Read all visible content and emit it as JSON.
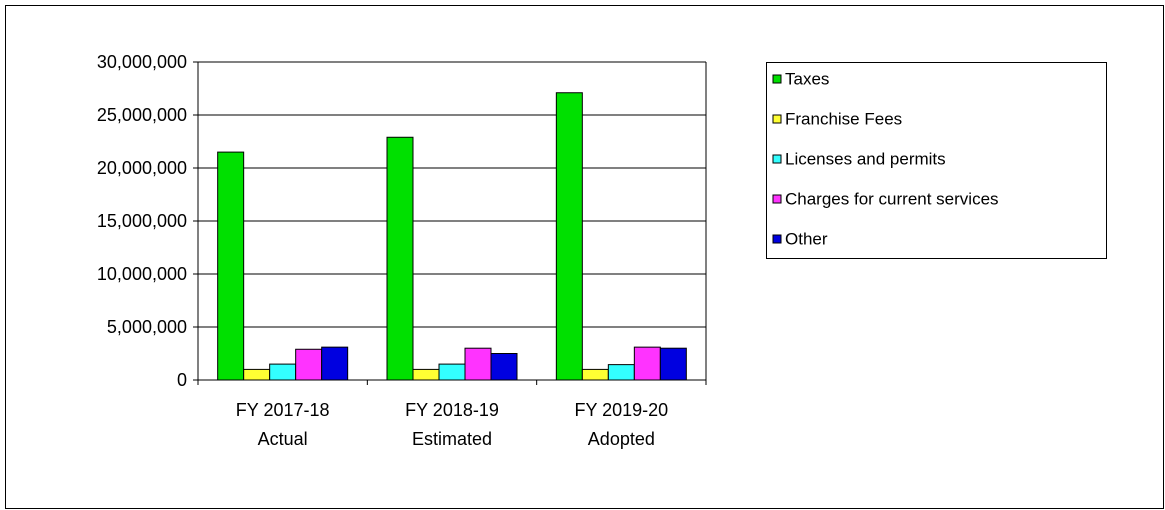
{
  "chart_data": {
    "type": "bar",
    "categories": [
      "FY 2017-18\nActual",
      "FY 2018-19\nEstimated",
      "FY 2019-20\nAdopted"
    ],
    "series": [
      {
        "name": "Taxes",
        "color": "#00e000",
        "values": [
          21500000,
          22900000,
          27100000
        ]
      },
      {
        "name": "Franchise Fees",
        "color": "#ffff33",
        "values": [
          1000000,
          1000000,
          1000000
        ]
      },
      {
        "name": "Licenses and permits",
        "color": "#33ffff",
        "values": [
          1500000,
          1500000,
          1450000
        ]
      },
      {
        "name": "Charges for current services",
        "color": "#ff33ff",
        "values": [
          2900000,
          3000000,
          3100000
        ]
      },
      {
        "name": "Other",
        "color": "#0000e0",
        "values": [
          3100000,
          2500000,
          3000000
        ]
      }
    ],
    "ylim": [
      0,
      30000000
    ],
    "yticks": [
      0,
      {
        "value": 5000000,
        "label": "5,000,000"
      },
      {
        "value": 10000000,
        "label": "10,000,000"
      },
      {
        "value": 15000000,
        "label": "15,000,000"
      },
      {
        "value": 20000000,
        "label": "20,000,000"
      },
      {
        "value": 25000000,
        "label": "25,000,000"
      },
      {
        "value": 30000000,
        "label": "30,000,000"
      }
    ],
    "grid": true,
    "legend": "right"
  }
}
